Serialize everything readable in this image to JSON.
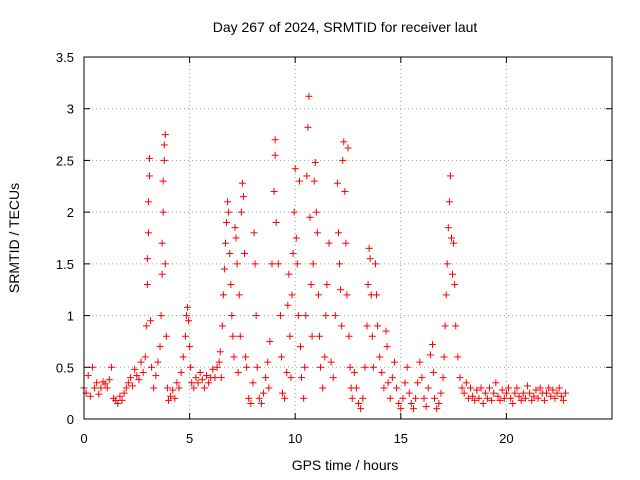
{
  "chart_data": {
    "type": "scatter",
    "title": "Day 267 of 2024, SRMTID for receiver laut",
    "xlabel": "GPS time / hours",
    "ylabel": "SRMTID / TECUs",
    "xlim": [
      0,
      25
    ],
    "ylim": [
      0,
      3.5
    ],
    "xticks": [
      0,
      5,
      10,
      15,
      20
    ],
    "xtick_labels": [
      "0",
      "5",
      "10",
      "15",
      "20"
    ],
    "yticks": [
      0,
      0.5,
      1,
      1.5,
      2,
      2.5,
      3,
      3.5
    ],
    "ytick_labels": [
      "0",
      "0.5",
      "1",
      "1.5",
      "2",
      "2.5",
      "3",
      "3.5"
    ],
    "grid": true,
    "marker": "+",
    "color": "#ff0000",
    "series": [
      {
        "name": "SRMTID",
        "points": [
          [
            0.0,
            0.3
          ],
          [
            0.1,
            0.25
          ],
          [
            0.2,
            0.42
          ],
          [
            0.3,
            0.22
          ],
          [
            0.4,
            0.5
          ],
          [
            0.5,
            0.3
          ],
          [
            0.6,
            0.35
          ],
          [
            0.7,
            0.24
          ],
          [
            0.8,
            0.3
          ],
          [
            0.9,
            0.36
          ],
          [
            1.0,
            0.34
          ],
          [
            1.1,
            0.3
          ],
          [
            1.2,
            0.38
          ],
          [
            1.3,
            0.5
          ],
          [
            1.4,
            0.2
          ],
          [
            1.5,
            0.18
          ],
          [
            1.6,
            0.15
          ],
          [
            1.7,
            0.22
          ],
          [
            1.8,
            0.18
          ],
          [
            1.9,
            0.25
          ],
          [
            2.0,
            0.3
          ],
          [
            2.1,
            0.35
          ],
          [
            2.2,
            0.4
          ],
          [
            2.3,
            0.32
          ],
          [
            2.4,
            0.48
          ],
          [
            2.5,
            0.42
          ],
          [
            2.6,
            0.38
          ],
          [
            2.7,
            0.55
          ],
          [
            2.8,
            0.45
          ],
          [
            2.9,
            0.6
          ],
          [
            2.95,
            0.9
          ],
          [
            3.0,
            1.3
          ],
          [
            3.0,
            1.55
          ],
          [
            3.05,
            1.8
          ],
          [
            3.05,
            2.1
          ],
          [
            3.1,
            2.35
          ],
          [
            3.1,
            2.52
          ],
          [
            3.15,
            0.95
          ],
          [
            3.2,
            0.5
          ],
          [
            3.3,
            0.3
          ],
          [
            3.4,
            0.42
          ],
          [
            3.5,
            0.55
          ],
          [
            3.6,
            0.7
          ],
          [
            3.65,
            1.0
          ],
          [
            3.7,
            1.4
          ],
          [
            3.7,
            1.7
          ],
          [
            3.75,
            2.0
          ],
          [
            3.75,
            2.3
          ],
          [
            3.8,
            2.5
          ],
          [
            3.8,
            2.65
          ],
          [
            3.85,
            2.75
          ],
          [
            3.85,
            1.5
          ],
          [
            3.9,
            0.8
          ],
          [
            3.95,
            0.3
          ],
          [
            4.0,
            0.18
          ],
          [
            4.1,
            0.22
          ],
          [
            4.2,
            0.28
          ],
          [
            4.3,
            0.2
          ],
          [
            4.4,
            0.35
          ],
          [
            4.5,
            0.3
          ],
          [
            4.6,
            0.45
          ],
          [
            4.7,
            0.6
          ],
          [
            4.8,
            0.8
          ],
          [
            4.85,
            1.0
          ],
          [
            4.9,
            1.08
          ],
          [
            4.95,
            0.95
          ],
          [
            5.0,
            0.7
          ],
          [
            5.05,
            0.5
          ],
          [
            5.1,
            0.35
          ],
          [
            5.2,
            0.3
          ],
          [
            5.3,
            0.4
          ],
          [
            5.4,
            0.35
          ],
          [
            5.5,
            0.45
          ],
          [
            5.6,
            0.38
          ],
          [
            5.7,
            0.3
          ],
          [
            5.8,
            0.42
          ],
          [
            5.9,
            0.35
          ],
          [
            6.0,
            0.4
          ],
          [
            6.1,
            0.48
          ],
          [
            6.2,
            0.4
          ],
          [
            6.3,
            0.5
          ],
          [
            6.4,
            0.55
          ],
          [
            6.45,
            0.65
          ],
          [
            6.5,
            0.4
          ],
          [
            6.55,
            0.9
          ],
          [
            6.6,
            1.2
          ],
          [
            6.65,
            1.45
          ],
          [
            6.7,
            1.7
          ],
          [
            6.75,
            1.9
          ],
          [
            6.8,
            2.1
          ],
          [
            6.85,
            2.0
          ],
          [
            6.9,
            1.6
          ],
          [
            6.95,
            1.3
          ],
          [
            7.0,
            1.0
          ],
          [
            7.05,
            0.8
          ],
          [
            7.1,
            0.6
          ],
          [
            7.15,
            1.85
          ],
          [
            7.2,
            1.75
          ],
          [
            7.25,
            1.5
          ],
          [
            7.3,
            0.45
          ],
          [
            7.35,
            1.2
          ],
          [
            7.4,
            0.8
          ],
          [
            7.45,
            2.0
          ],
          [
            7.5,
            2.28
          ],
          [
            7.55,
            2.15
          ],
          [
            7.6,
            1.6
          ],
          [
            7.65,
            0.6
          ],
          [
            7.7,
            0.5
          ],
          [
            7.8,
            0.2
          ],
          [
            7.9,
            0.15
          ],
          [
            8.0,
            0.35
          ],
          [
            8.05,
            1.8
          ],
          [
            8.1,
            1.5
          ],
          [
            8.15,
            1.0
          ],
          [
            8.2,
            0.5
          ],
          [
            8.3,
            0.2
          ],
          [
            8.4,
            0.15
          ],
          [
            8.5,
            0.25
          ],
          [
            8.6,
            0.4
          ],
          [
            8.7,
            0.55
          ],
          [
            8.75,
            0.3
          ],
          [
            8.8,
            0.75
          ],
          [
            8.9,
            1.5
          ],
          [
            9.0,
            2.2
          ],
          [
            9.05,
            2.55
          ],
          [
            9.05,
            2.7
          ],
          [
            9.1,
            1.9
          ],
          [
            9.2,
            1.5
          ],
          [
            9.3,
            1.0
          ],
          [
            9.35,
            0.6
          ],
          [
            9.4,
            0.25
          ],
          [
            9.5,
            0.2
          ],
          [
            9.6,
            0.45
          ],
          [
            9.65,
            1.1
          ],
          [
            9.7,
            1.4
          ],
          [
            9.75,
            0.8
          ],
          [
            9.8,
            0.4
          ],
          [
            9.85,
            1.2
          ],
          [
            9.9,
            1.6
          ],
          [
            9.95,
            2.0
          ],
          [
            10.0,
            2.42
          ],
          [
            10.05,
            1.75
          ],
          [
            10.1,
            1.5
          ],
          [
            10.15,
            1.0
          ],
          [
            10.2,
            2.3
          ],
          [
            10.25,
            0.7
          ],
          [
            10.3,
            0.4
          ],
          [
            10.4,
            0.2
          ],
          [
            10.45,
            0.5
          ],
          [
            10.5,
            1.0
          ],
          [
            10.55,
            2.35
          ],
          [
            10.6,
            2.82
          ],
          [
            10.65,
            3.12
          ],
          [
            10.7,
            1.95
          ],
          [
            10.75,
            1.3
          ],
          [
            10.8,
            0.8
          ],
          [
            10.85,
            1.5
          ],
          [
            10.9,
            2.3
          ],
          [
            10.95,
            2.48
          ],
          [
            11.0,
            2.0
          ],
          [
            11.05,
            1.8
          ],
          [
            11.1,
            1.2
          ],
          [
            11.15,
            0.8
          ],
          [
            11.2,
            0.5
          ],
          [
            11.3,
            0.3
          ],
          [
            11.4,
            0.6
          ],
          [
            11.45,
            1.0
          ],
          [
            11.5,
            1.3
          ],
          [
            11.6,
            1.7
          ],
          [
            11.7,
            0.55
          ],
          [
            11.8,
            0.4
          ],
          [
            11.9,
            1.0
          ],
          [
            12.0,
            2.28
          ],
          [
            12.05,
            1.8
          ],
          [
            12.1,
            1.5
          ],
          [
            12.15,
            1.25
          ],
          [
            12.2,
            0.9
          ],
          [
            12.25,
            2.5
          ],
          [
            12.3,
            2.68
          ],
          [
            12.35,
            2.2
          ],
          [
            12.4,
            1.7
          ],
          [
            12.45,
            1.2
          ],
          [
            12.5,
            2.62
          ],
          [
            12.55,
            0.8
          ],
          [
            12.6,
            0.5
          ],
          [
            12.65,
            0.3
          ],
          [
            12.7,
            0.2
          ],
          [
            12.8,
            0.45
          ],
          [
            12.9,
            0.3
          ],
          [
            13.0,
            0.15
          ],
          [
            13.1,
            0.1
          ],
          [
            13.2,
            0.2
          ],
          [
            13.3,
            0.5
          ],
          [
            13.4,
            0.9
          ],
          [
            13.45,
            1.3
          ],
          [
            13.5,
            1.65
          ],
          [
            13.55,
            1.55
          ],
          [
            13.6,
            1.2
          ],
          [
            13.65,
            0.8
          ],
          [
            13.7,
            0.5
          ],
          [
            13.8,
            1.5
          ],
          [
            13.85,
            1.2
          ],
          [
            13.9,
            0.9
          ],
          [
            14.0,
            0.6
          ],
          [
            14.1,
            0.45
          ],
          [
            14.2,
            0.3
          ],
          [
            14.3,
            0.85
          ],
          [
            14.35,
            0.7
          ],
          [
            14.4,
            0.35
          ],
          [
            14.5,
            0.2
          ],
          [
            14.6,
            0.4
          ],
          [
            14.7,
            0.55
          ],
          [
            14.8,
            0.3
          ],
          [
            14.9,
            0.15
          ],
          [
            15.0,
            0.1
          ],
          [
            15.1,
            0.2
          ],
          [
            15.2,
            0.35
          ],
          [
            15.3,
            0.5
          ],
          [
            15.4,
            0.25
          ],
          [
            15.5,
            0.15
          ],
          [
            15.6,
            0.1
          ],
          [
            15.7,
            0.2
          ],
          [
            15.8,
            0.35
          ],
          [
            15.9,
            0.55
          ],
          [
            16.0,
            0.4
          ],
          [
            16.1,
            0.2
          ],
          [
            16.2,
            0.12
          ],
          [
            16.3,
            0.3
          ],
          [
            16.4,
            0.62
          ],
          [
            16.5,
            0.72
          ],
          [
            16.55,
            0.45
          ],
          [
            16.6,
            0.2
          ],
          [
            16.7,
            0.1
          ],
          [
            16.8,
            0.15
          ],
          [
            16.9,
            0.25
          ],
          [
            17.0,
            0.4
          ],
          [
            17.05,
            0.6
          ],
          [
            17.1,
            0.9
          ],
          [
            17.15,
            1.2
          ],
          [
            17.2,
            1.5
          ],
          [
            17.25,
            1.85
          ],
          [
            17.3,
            2.1
          ],
          [
            17.35,
            2.35
          ],
          [
            17.4,
            1.75
          ],
          [
            17.45,
            1.4
          ],
          [
            17.5,
            1.7
          ],
          [
            17.55,
            1.3
          ],
          [
            17.6,
            0.9
          ],
          [
            17.7,
            0.6
          ],
          [
            17.8,
            0.4
          ],
          [
            17.9,
            0.3
          ],
          [
            18.0,
            0.25
          ],
          [
            18.1,
            0.35
          ],
          [
            18.2,
            0.2
          ],
          [
            18.3,
            0.3
          ],
          [
            18.4,
            0.22
          ],
          [
            18.5,
            0.18
          ],
          [
            18.6,
            0.28
          ],
          [
            18.7,
            0.2
          ],
          [
            18.8,
            0.3
          ],
          [
            18.9,
            0.15
          ],
          [
            19.0,
            0.25
          ],
          [
            19.1,
            0.2
          ],
          [
            19.2,
            0.3
          ],
          [
            19.3,
            0.18
          ],
          [
            19.4,
            0.25
          ],
          [
            19.5,
            0.35
          ],
          [
            19.6,
            0.22
          ],
          [
            19.7,
            0.18
          ],
          [
            19.8,
            0.28
          ],
          [
            19.9,
            0.2
          ],
          [
            20.0,
            0.25
          ],
          [
            20.1,
            0.3
          ],
          [
            20.2,
            0.2
          ],
          [
            20.3,
            0.15
          ],
          [
            20.4,
            0.25
          ],
          [
            20.5,
            0.3
          ],
          [
            20.6,
            0.22
          ],
          [
            20.7,
            0.18
          ],
          [
            20.8,
            0.25
          ],
          [
            20.9,
            0.2
          ],
          [
            21.0,
            0.32
          ],
          [
            21.1,
            0.25
          ],
          [
            21.2,
            0.18
          ],
          [
            21.3,
            0.22
          ],
          [
            21.4,
            0.28
          ],
          [
            21.5,
            0.2
          ],
          [
            21.6,
            0.3
          ],
          [
            21.7,
            0.25
          ],
          [
            21.8,
            0.18
          ],
          [
            21.9,
            0.25
          ],
          [
            22.0,
            0.3
          ],
          [
            22.1,
            0.22
          ],
          [
            22.2,
            0.28
          ],
          [
            22.3,
            0.2
          ],
          [
            22.4,
            0.25
          ],
          [
            22.5,
            0.3
          ],
          [
            22.6,
            0.22
          ],
          [
            22.7,
            0.18
          ],
          [
            22.8,
            0.25
          ]
        ]
      }
    ]
  }
}
